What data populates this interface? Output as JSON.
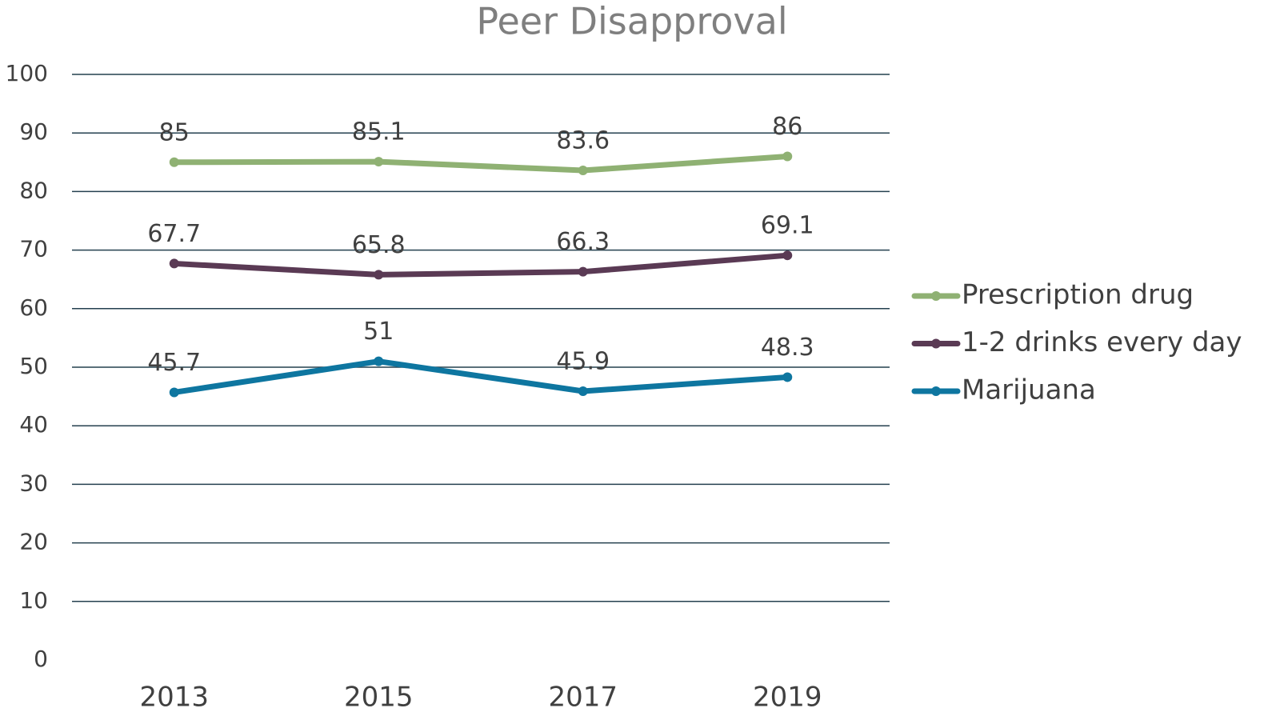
{
  "chart_data": {
    "type": "line",
    "title": "Peer Disapproval",
    "categories": [
      "2013",
      "2015",
      "2017",
      "2019"
    ],
    "series": [
      {
        "name": "Prescription drug",
        "color": "#8fb173",
        "values": [
          85,
          85.1,
          83.6,
          86
        ]
      },
      {
        "name": "1-2 drinks every day",
        "color": "#5a3a54",
        "values": [
          67.7,
          65.8,
          66.3,
          69.1
        ]
      },
      {
        "name": "Marijuana",
        "color": "#0e76a0",
        "values": [
          45.7,
          51,
          45.9,
          48.3
        ]
      }
    ],
    "ylim": [
      0,
      100
    ],
    "yticks": [
      0,
      10,
      20,
      30,
      40,
      50,
      60,
      70,
      80,
      90,
      100
    ],
    "grid": true,
    "legend": "right"
  }
}
